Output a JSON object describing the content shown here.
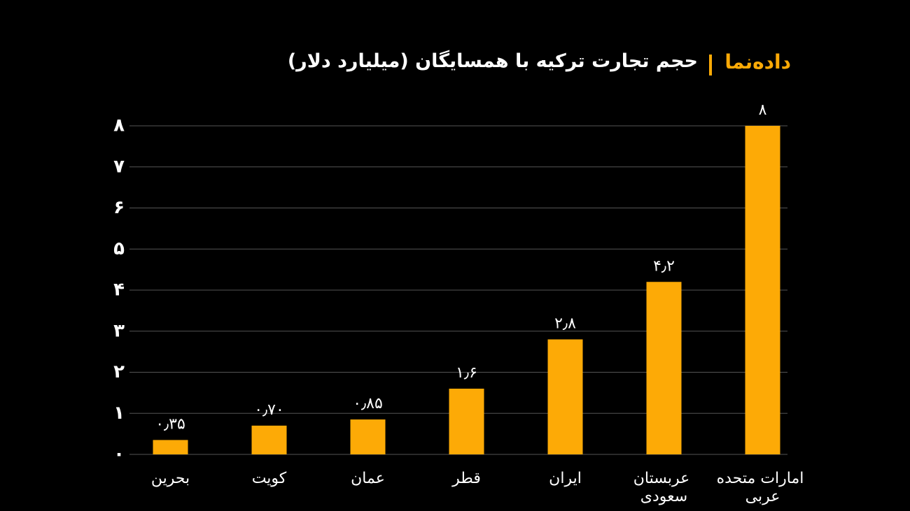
{
  "chart_data": {
    "type": "bar",
    "brand": "داده‌نما",
    "title": "حجم تجارت ترکیه با همسایگان (میلیارد دلار)",
    "categories": [
      "بحرین",
      "کویت",
      "عمان",
      "قطر",
      "ایران",
      "عربستان سعودی",
      "امارات متحده عربی"
    ],
    "values": [
      0.35,
      0.7,
      0.85,
      1.6,
      2.8,
      4.2,
      8
    ],
    "value_labels": [
      "۰٫۳۵",
      "۰٫۷۰",
      "۰٫۸۵",
      "۱٫۶",
      "۲٫۸",
      "۴٫۲",
      "۸"
    ],
    "color": "#fdaa06",
    "ylim": [
      0,
      8
    ],
    "yticks": [
      {
        "value": 0,
        "label": "۰"
      },
      {
        "value": 1,
        "label": "۱"
      },
      {
        "value": 2,
        "label": "۲"
      },
      {
        "value": 3,
        "label": "۳"
      },
      {
        "value": 4,
        "label": "۴"
      },
      {
        "value": 5,
        "label": "۵"
      },
      {
        "value": 6,
        "label": "۶"
      },
      {
        "value": 7,
        "label": "۷"
      },
      {
        "value": 8,
        "label": "۸"
      }
    ],
    "grid": true
  }
}
